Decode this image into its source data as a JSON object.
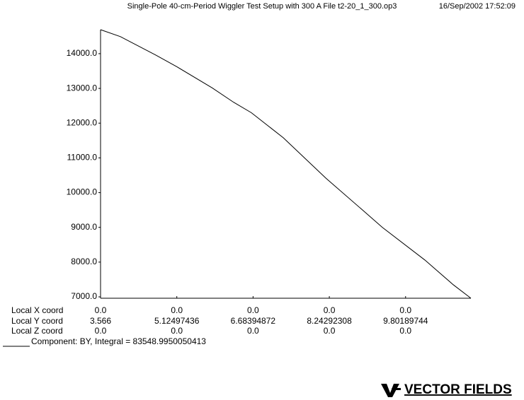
{
  "chart_data": {
    "type": "line",
    "title": "Single-Pole 40-cm-Period Wiggler Test Setup with 300 A  File t2-20_1_300.op3",
    "timestamp": "16/Sep/2002 17:52:09",
    "x": [
      3.566,
      3.971,
      4.695,
      5.129,
      5.853,
      6.287,
      6.649,
      7.301,
      8.169,
      8.88,
      9.327,
      10.196,
      10.775,
      11.137
    ],
    "series": [
      {
        "name": "Component:  BY, Integral = 83548.9950050413",
        "color": "#000000",
        "values": [
          14690,
          14490,
          13960,
          13620,
          13010,
          12600,
          12300,
          11580,
          10420,
          9550,
          9000,
          8060,
          7350,
          6960
        ]
      }
    ],
    "xlim": [
      3.566,
      11.137
    ],
    "xticks": [
      3.566,
      5.12497436,
      6.68394872,
      8.24292308,
      9.80189744
    ],
    "ylim": [
      6960,
      14690
    ],
    "yticks": [
      {
        "value": 7000,
        "label": "7000.0"
      },
      {
        "value": 8000,
        "label": "8000.0"
      },
      {
        "value": 9000,
        "label": "9000.0"
      },
      {
        "value": 10000,
        "label": "10000.0"
      },
      {
        "value": 11000,
        "label": "11000.0"
      },
      {
        "value": 12000,
        "label": "12000.0"
      },
      {
        "value": 13000,
        "label": "13000.0"
      },
      {
        "value": 14000,
        "label": "14000.0"
      }
    ],
    "coord_table": {
      "x_label": "Local X coord",
      "x_values": [
        "0.0",
        "0.0",
        "0.0",
        "0.0",
        "0.0"
      ],
      "y_label": "Local Y coord",
      "z_label": "Local Z coord",
      "z_values": [
        "0.0",
        "0.0",
        "0.0",
        "0.0",
        "0.0"
      ]
    }
  },
  "logo": "VECTOR FIELDS"
}
